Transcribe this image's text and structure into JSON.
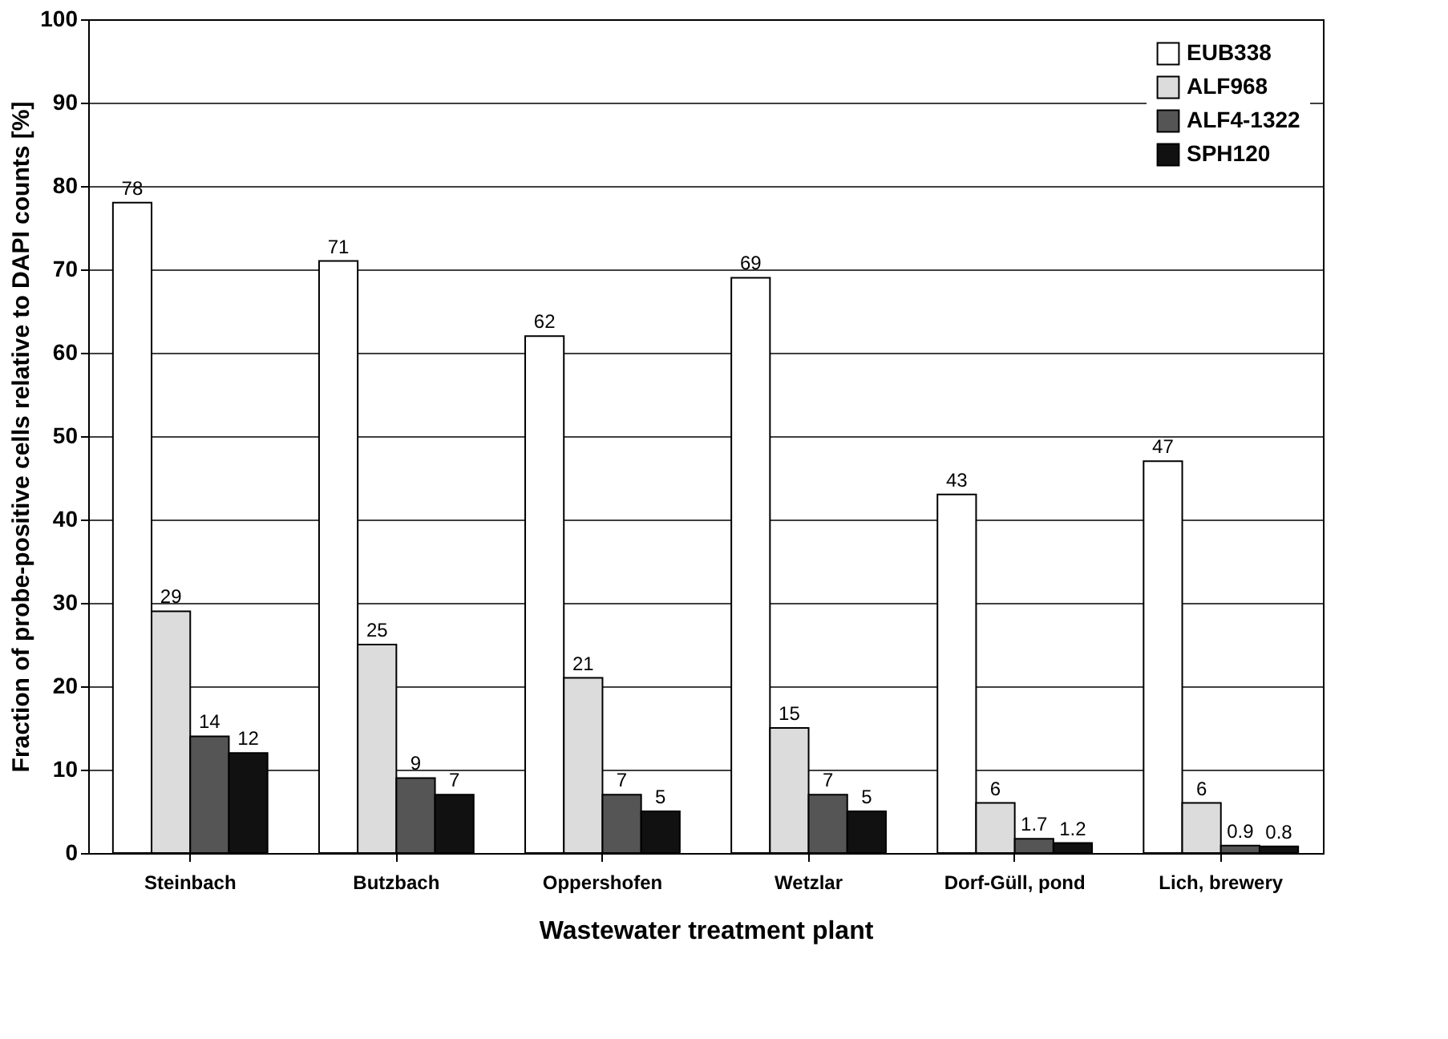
{
  "chart_data": {
    "type": "bar",
    "xlabel": "Wastewater treatment plant",
    "ylabel": "Fraction of probe-positive cells relative to DAPI counts [%]",
    "categories": [
      "Steinbach",
      "Butzbach",
      "Oppershofen",
      "Wetzlar",
      "Dorf-Güll, pond",
      "Lich, brewery"
    ],
    "series": [
      {
        "name": "EUB338",
        "color": "#ffffff",
        "values": [
          78,
          71,
          62,
          69,
          43,
          47
        ]
      },
      {
        "name": "ALF968",
        "color": "#dcdcdc",
        "values": [
          29,
          25,
          21,
          15,
          6,
          6
        ]
      },
      {
        "name": "ALF4-1322",
        "color": "#555555",
        "values": [
          14,
          9,
          7,
          7,
          1.7,
          0.9
        ]
      },
      {
        "name": "SPH120",
        "color": "#111111",
        "values": [
          12,
          7,
          5,
          5,
          1.2,
          0.8
        ]
      }
    ],
    "ylim": [
      0,
      100
    ],
    "yticks": [
      0,
      10,
      20,
      30,
      40,
      50,
      60,
      70,
      80,
      90,
      100
    ],
    "grid": "y",
    "legend": "top right",
    "data_labels": true
  }
}
